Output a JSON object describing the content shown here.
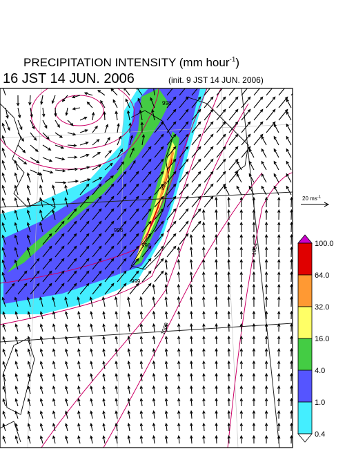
{
  "title": {
    "main": "PRECIPITATION INTENSITY (mm hour",
    "exponent": "-1",
    "end": ")"
  },
  "valid_time": "16 JST 14 JUN. 2006",
  "init_time": "(init. 9 JST 14 JUN. 2006)",
  "vector_key": {
    "label": "20 ms",
    "exponent": "-1"
  },
  "colorbar": {
    "labels": [
      "100.0",
      "64.0",
      "32.0",
      "16.0",
      "4.0",
      "1.0",
      "0.4"
    ],
    "colors": [
      "#cc00cc",
      "#e00000",
      "#ff9933",
      "#ffff66",
      "#44cc44",
      "#5555ff",
      "#44eeff",
      "#ffffff"
    ]
  },
  "contour_labels": [
    "998",
    "994",
    "996",
    "998",
    "999",
    "1000",
    "1004"
  ]
}
